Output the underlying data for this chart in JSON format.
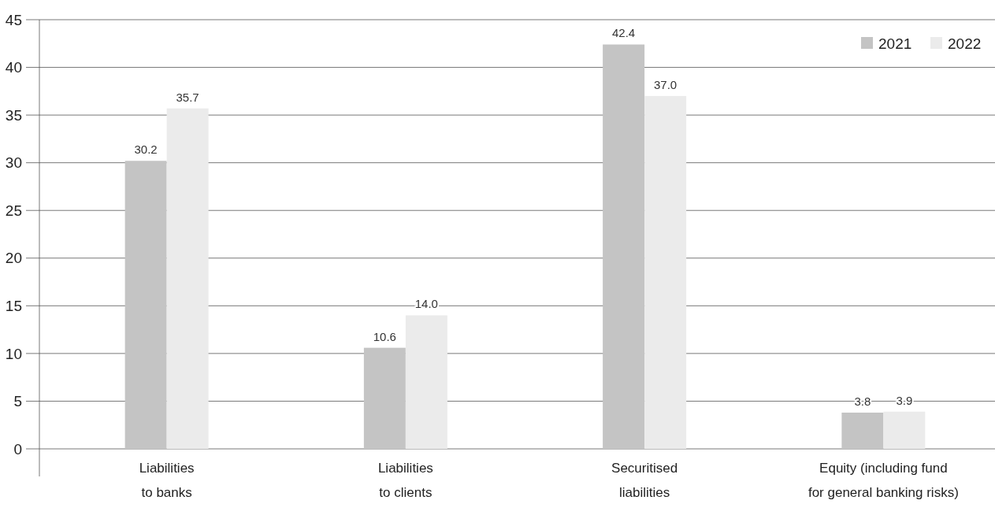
{
  "chart_data": {
    "type": "bar",
    "categories": [
      "Liabilities to banks",
      "Liabilities to clients",
      "Securitised liabilities",
      "Equity (including fund for general banking risks)"
    ],
    "series": [
      {
        "name": "2021",
        "color": "#c4c4c4",
        "values": [
          30.2,
          10.6,
          42.4,
          3.8
        ],
        "value_labels": [
          "30.2",
          "10.6",
          "42.4",
          "3.8"
        ]
      },
      {
        "name": "2022",
        "color": "#ebebeb",
        "values": [
          35.7,
          14.0,
          37.0,
          3.9
        ],
        "value_labels": [
          "35.7",
          "14.0",
          "37.0",
          "3.9"
        ]
      }
    ],
    "ylim": [
      0,
      45
    ],
    "yticks": [
      0,
      5,
      10,
      15,
      20,
      25,
      30,
      35,
      40,
      45
    ],
    "grid": "y",
    "legend": "top right"
  }
}
